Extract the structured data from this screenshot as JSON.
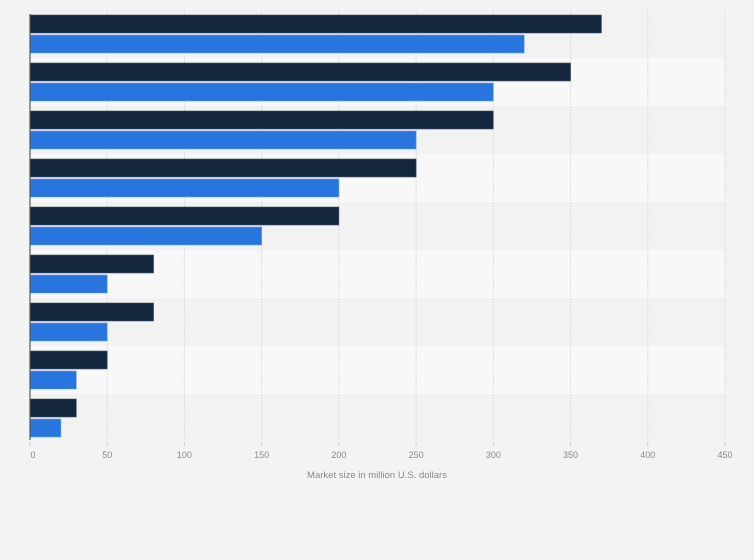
{
  "chart_data": {
    "type": "bar",
    "orientation": "horizontal",
    "title": "",
    "xlabel": "Market size in million U.S. dollars",
    "ylabel": "",
    "xlim": [
      0,
      450
    ],
    "x_ticks": [
      "0",
      "50",
      "100",
      "150",
      "200",
      "250",
      "300",
      "350",
      "400",
      "450"
    ],
    "categories_count": 9,
    "series": [
      {
        "name": "series-1",
        "color": "#13273f",
        "values": [
          370,
          350,
          300,
          250,
          200,
          80,
          80,
          50,
          30
        ]
      },
      {
        "name": "series-2",
        "color": "#2876dd",
        "values": [
          320,
          300,
          250,
          200,
          150,
          50,
          50,
          30,
          20
        ]
      }
    ],
    "grid": true,
    "legend": "none"
  }
}
